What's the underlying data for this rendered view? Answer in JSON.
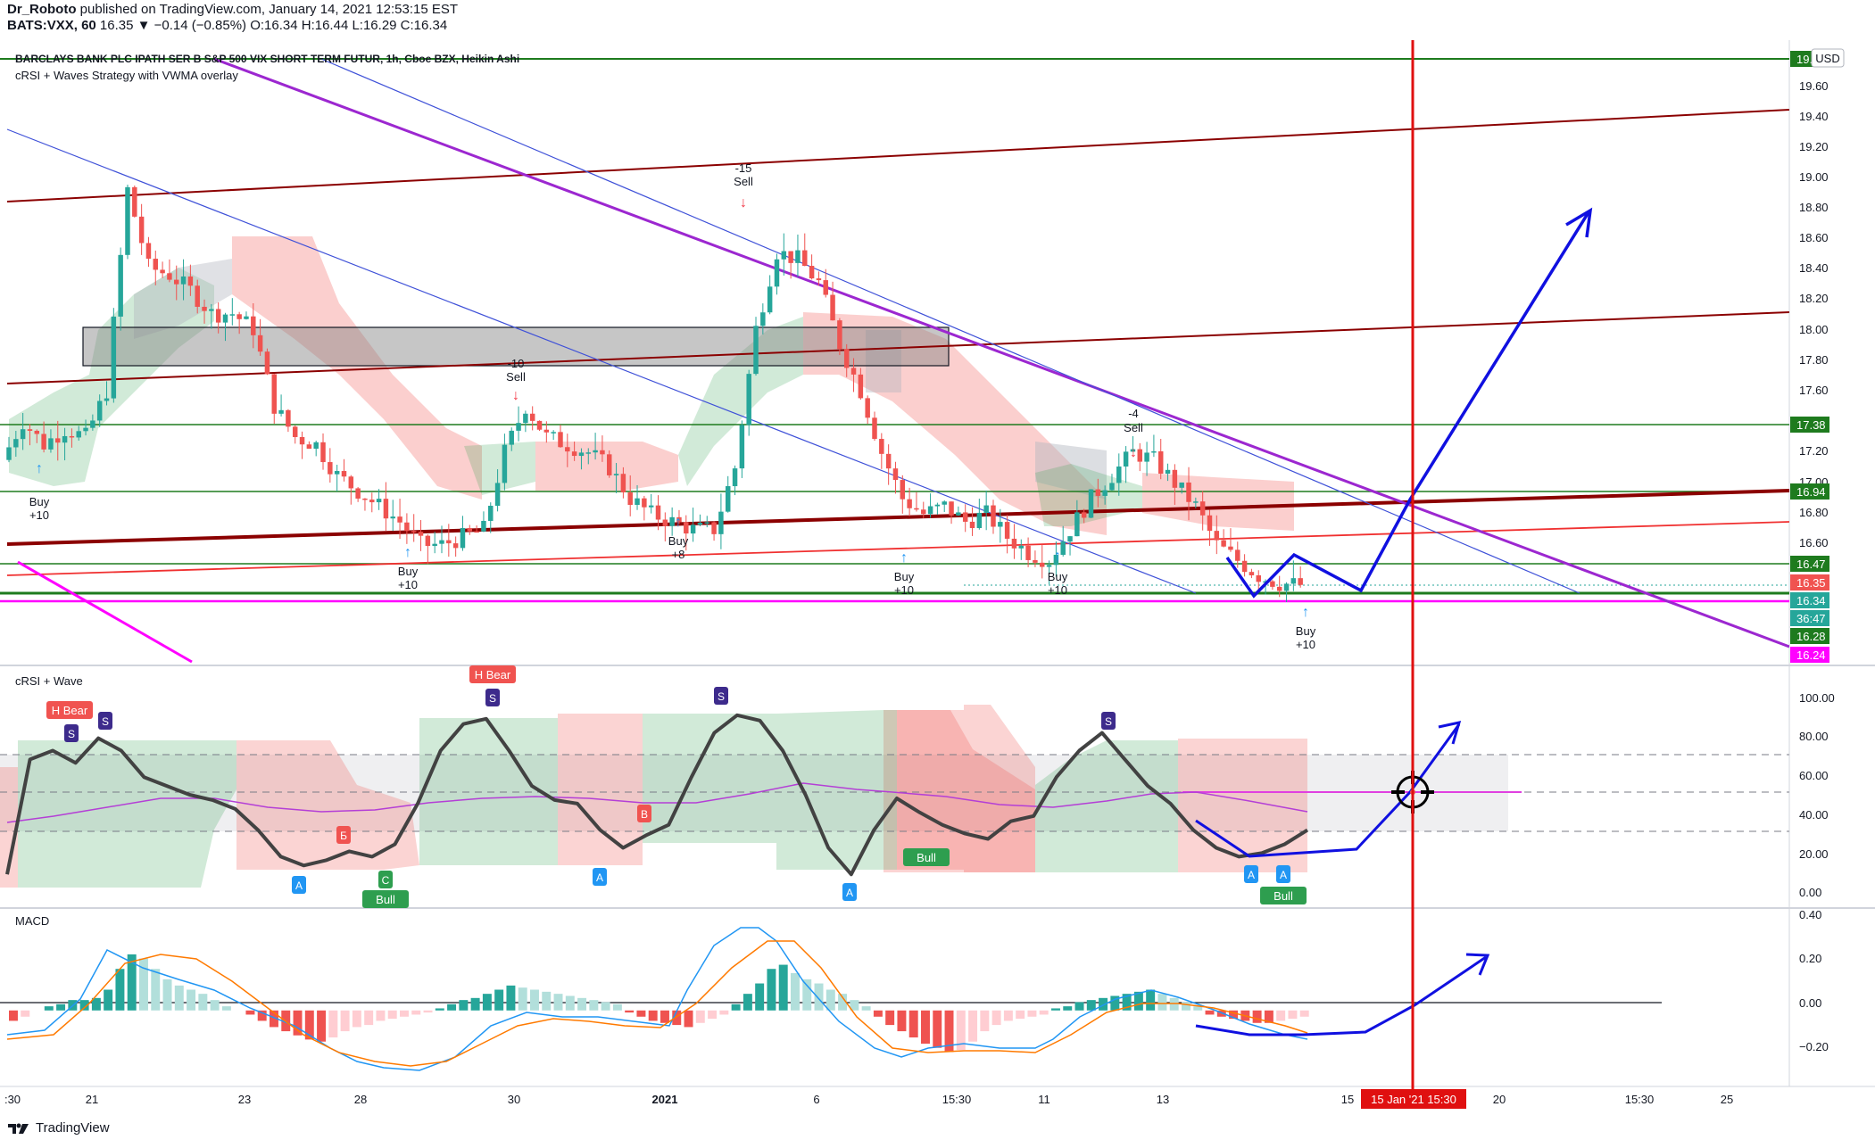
{
  "header": {
    "author": "Dr_Roboto",
    "published_text": "published on TradingView.com, January 14, 2021 12:53:15 EST",
    "symbol_line_symbol": "BATS:VXX, 60",
    "symbol_line_values": "16.35 ▼ −0.14 (−0.85%) O:16.34 H:16.44 L:16.29 C:16.34"
  },
  "footer": {
    "brand": "TradingView"
  },
  "price_panel": {
    "title": "BARCLAYS BANK PLC IPATH SER B S&P 500 VIX SHORT TERM FUTUR, 1h, Cboe BZX, Heikin Ashi",
    "indicator": "cRSI + Waves Strategy with VWMA overlay",
    "currency": "USD",
    "axis_labels": [
      "19.60",
      "19.40",
      "19.20",
      "19.00",
      "18.80",
      "18.60",
      "18.40",
      "18.20",
      "18.00",
      "17.80",
      "17.60",
      "17.20",
      "17.00",
      "16.80",
      "16.60"
    ],
    "price_tags": [
      {
        "text": "19.",
        "color": "#1e7b1e"
      },
      {
        "text": "17.38",
        "color": "#1e7b1e"
      },
      {
        "text": "16.94",
        "color": "#1e7b1e"
      },
      {
        "text": "16.47",
        "color": "#1e7b1e"
      },
      {
        "text": "16.35",
        "color": "#f05350"
      },
      {
        "text": "16.34",
        "color": "#26a69a"
      },
      {
        "text": "36:47",
        "color": "#26a69a"
      },
      {
        "text": "16.28",
        "color": "#1e7b1e"
      },
      {
        "text": "16.24",
        "color": "#ff00ff"
      }
    ],
    "signals": [
      {
        "kind": "buy",
        "l1": "Buy",
        "l2": "+10"
      },
      {
        "kind": "buy",
        "l1": "Buy",
        "l2": "+10"
      },
      {
        "kind": "sell",
        "l1": "-10",
        "l2": "Sell"
      },
      {
        "kind": "buy",
        "l1": "Buy",
        "l2": "+8"
      },
      {
        "kind": "sell",
        "l1": "-15",
        "l2": "Sell"
      },
      {
        "kind": "buy",
        "l1": "Buy",
        "l2": "+10"
      },
      {
        "kind": "buy",
        "l1": "Buy",
        "l2": "+10"
      },
      {
        "kind": "sell",
        "l1": "-4",
        "l2": "Sell"
      },
      {
        "kind": "buy",
        "l1": "Buy",
        "l2": "+10"
      }
    ]
  },
  "crsi_panel": {
    "title": "cRSI + Wave",
    "axis_labels": [
      "100.00",
      "80.00",
      "60.00",
      "40.00",
      "20.00",
      "0.00"
    ],
    "markers": [
      {
        "text": "H Bear",
        "color": "#f05350"
      },
      {
        "text": "S",
        "color": "#3d2b8c"
      },
      {
        "text": "S",
        "color": "#3d2b8c"
      },
      {
        "text": "A",
        "color": "#2196f3"
      },
      {
        "text": "Б",
        "color": "#f05350"
      },
      {
        "text": "C",
        "color": "#2e9e4f"
      },
      {
        "text": "Bull",
        "color": "#2e9e4f"
      },
      {
        "text": "H Bear",
        "color": "#f05350"
      },
      {
        "text": "S",
        "color": "#3d2b8c"
      },
      {
        "text": "A",
        "color": "#2196f3"
      },
      {
        "text": "B",
        "color": "#f05350"
      },
      {
        "text": "S",
        "color": "#3d2b8c"
      },
      {
        "text": "A",
        "color": "#2196f3"
      },
      {
        "text": "Bull",
        "color": "#2e9e4f"
      },
      {
        "text": "S",
        "color": "#3d2b8c"
      },
      {
        "text": "A",
        "color": "#2196f3"
      },
      {
        "text": "A",
        "color": "#2196f3"
      },
      {
        "text": "Bull",
        "color": "#2e9e4f"
      }
    ]
  },
  "macd_panel": {
    "title": "MACD",
    "axis_labels": [
      "0.40",
      "0.20",
      "0.00",
      "−0.20"
    ]
  },
  "time_axis": {
    "labels": [
      ":30",
      "21",
      "23",
      "28",
      "30",
      "2021",
      "6",
      "15:30",
      "11",
      "13",
      "15",
      "20",
      "15:30",
      "25"
    ],
    "cursor_label": "15 Jan '21  15:30"
  },
  "chart_data": {
    "type": "candlestick",
    "title": "BARCLAYS BANK PLC IPATH SER B S&P 500 VIX SHORT TERM FUTUR, 1h, Cboe BZX, Heikin Ashi",
    "ylim": [
      16.2,
      19.75
    ],
    "close_path": [
      17.15,
      17.4,
      17.25,
      17.35,
      17.3,
      17.6,
      18.9,
      18.4,
      18.35,
      18.25,
      18.1,
      18.1,
      18.0,
      17.5,
      17.3,
      17.25,
      17.05,
      16.95,
      16.85,
      16.75,
      16.6,
      16.6,
      16.65,
      16.7,
      17.2,
      17.5,
      17.3,
      17.25,
      17.2,
      17.1,
      16.9,
      16.8,
      16.75,
      16.7,
      16.7,
      17.1,
      18.0,
      18.5,
      18.45,
      18.3,
      17.9,
      17.6,
      17.2,
      16.9,
      16.8,
      16.85,
      16.75,
      16.8,
      16.65,
      16.55,
      16.5,
      16.7,
      16.9,
      17.05,
      17.2,
      17.15,
      17.0,
      16.85,
      16.6,
      16.5,
      16.4,
      16.35,
      16.34
    ],
    "cRSI_ylim": [
      -5,
      105
    ],
    "cRSI_path": [
      5,
      70,
      75,
      68,
      82,
      75,
      60,
      55,
      50,
      47,
      42,
      30,
      15,
      10,
      13,
      18,
      15,
      22,
      45,
      75,
      90,
      93,
      75,
      55,
      47,
      45,
      30,
      20,
      27,
      33,
      60,
      85,
      95,
      92,
      75,
      50,
      20,
      5,
      30,
      48,
      40,
      33,
      28,
      25,
      35,
      38,
      60,
      75,
      85,
      70,
      55,
      45,
      30,
      20,
      15,
      17,
      22,
      30
    ],
    "cRSI_projection": [
      30,
      20,
      70,
      85
    ],
    "macd_ylim": [
      -0.28,
      0.45
    ],
    "macd_hist": [
      -0.05,
      -0.03,
      0.0,
      0.02,
      0.03,
      0.05,
      0.05,
      0.06,
      0.1,
      0.2,
      0.27,
      0.25,
      0.2,
      0.15,
      0.12,
      0.1,
      0.08,
      0.05,
      0.02,
      0.0,
      -0.02,
      -0.05,
      -0.08,
      -0.1,
      -0.12,
      -0.14,
      -0.15,
      -0.13,
      -0.1,
      -0.08,
      -0.07,
      -0.05,
      -0.04,
      -0.03,
      -0.02,
      -0.01,
      0.01,
      0.03,
      0.05,
      0.06,
      0.08,
      0.1,
      0.12,
      0.11,
      0.1,
      0.09,
      0.08,
      0.07,
      0.06,
      0.05,
      0.04,
      0.03,
      -0.01,
      -0.03,
      -0.05,
      -0.06,
      -0.07,
      -0.08,
      -0.06,
      -0.04,
      -0.02,
      0.03,
      0.08,
      0.13,
      0.2,
      0.22,
      0.18,
      0.15,
      0.13,
      0.1,
      0.08,
      0.05,
      0.02,
      -0.03,
      -0.07,
      -0.1,
      -0.13,
      -0.16,
      -0.18,
      -0.2,
      -0.19,
      -0.15,
      -0.1,
      -0.07,
      -0.05,
      -0.04,
      -0.03,
      -0.02,
      0.01,
      0.02,
      0.04,
      0.05,
      0.06,
      0.07,
      0.08,
      0.09,
      0.1,
      0.08,
      0.06,
      0.04,
      0.02,
      -0.02,
      -0.03,
      -0.04,
      -0.05,
      -0.06,
      -0.06,
      -0.05,
      -0.04,
      -0.03
    ],
    "macd_projection": [
      -0.14,
      -0.12,
      0.0,
      0.2
    ]
  }
}
